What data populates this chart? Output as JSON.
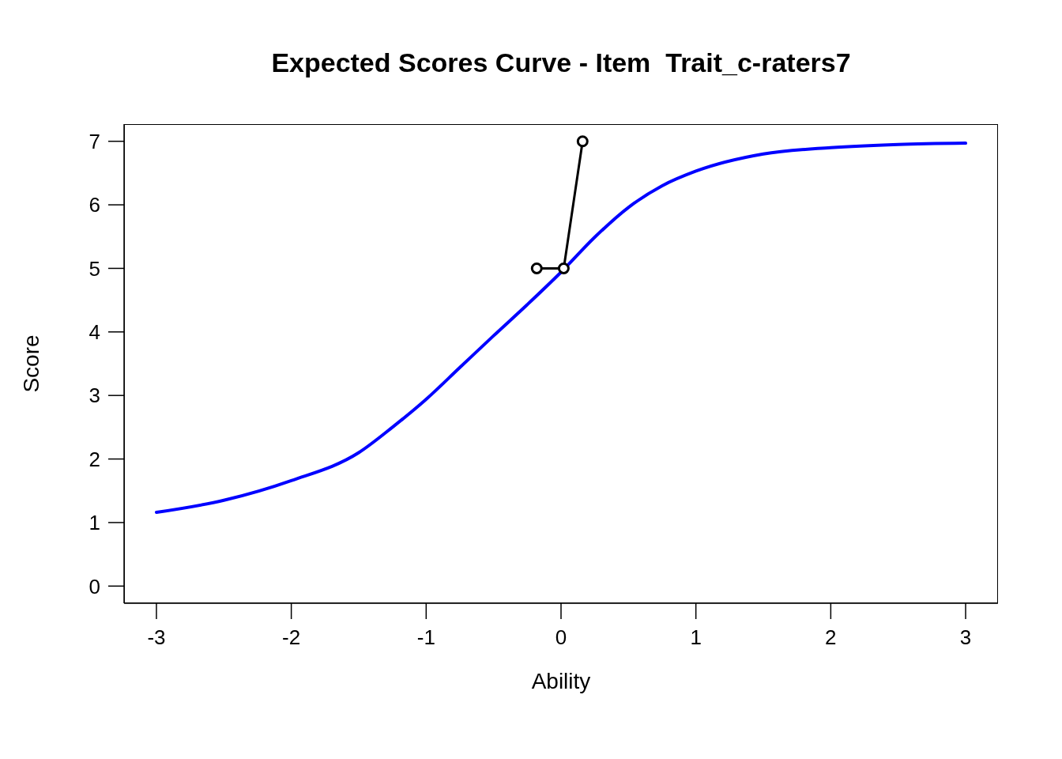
{
  "chart_data": {
    "type": "line",
    "title": "Expected Scores Curve - Item  Trait_c-raters7",
    "xlabel": "Ability",
    "ylabel": "Score",
    "xlim": [
      -3.24,
      3.24
    ],
    "ylim": [
      -0.27,
      7.27
    ],
    "xticks": [
      -3,
      -2,
      -1,
      0,
      1,
      2,
      3
    ],
    "yticks": [
      0,
      1,
      2,
      3,
      4,
      5,
      6,
      7
    ],
    "series": [
      {
        "color": "#0000ff",
        "marker": "none",
        "x": [
          -3,
          -2.5,
          -2,
          -1.5,
          -1.25,
          -1,
          -0.75,
          -0.5,
          -0.25,
          0,
          0.25,
          0.5,
          0.75,
          1,
          1.5,
          2,
          2.5,
          3
        ],
        "values": [
          1.16,
          1.35,
          1.66,
          2.1,
          2.5,
          2.94,
          3.44,
          3.94,
          4.43,
          4.94,
          5.49,
          5.96,
          6.3,
          6.53,
          6.8,
          6.9,
          6.95,
          6.97
        ]
      },
      {
        "color": "#000000",
        "marker": "circle",
        "x": [
          -0.18,
          0.02,
          0.16
        ],
        "values": [
          5,
          5,
          7
        ]
      }
    ]
  }
}
